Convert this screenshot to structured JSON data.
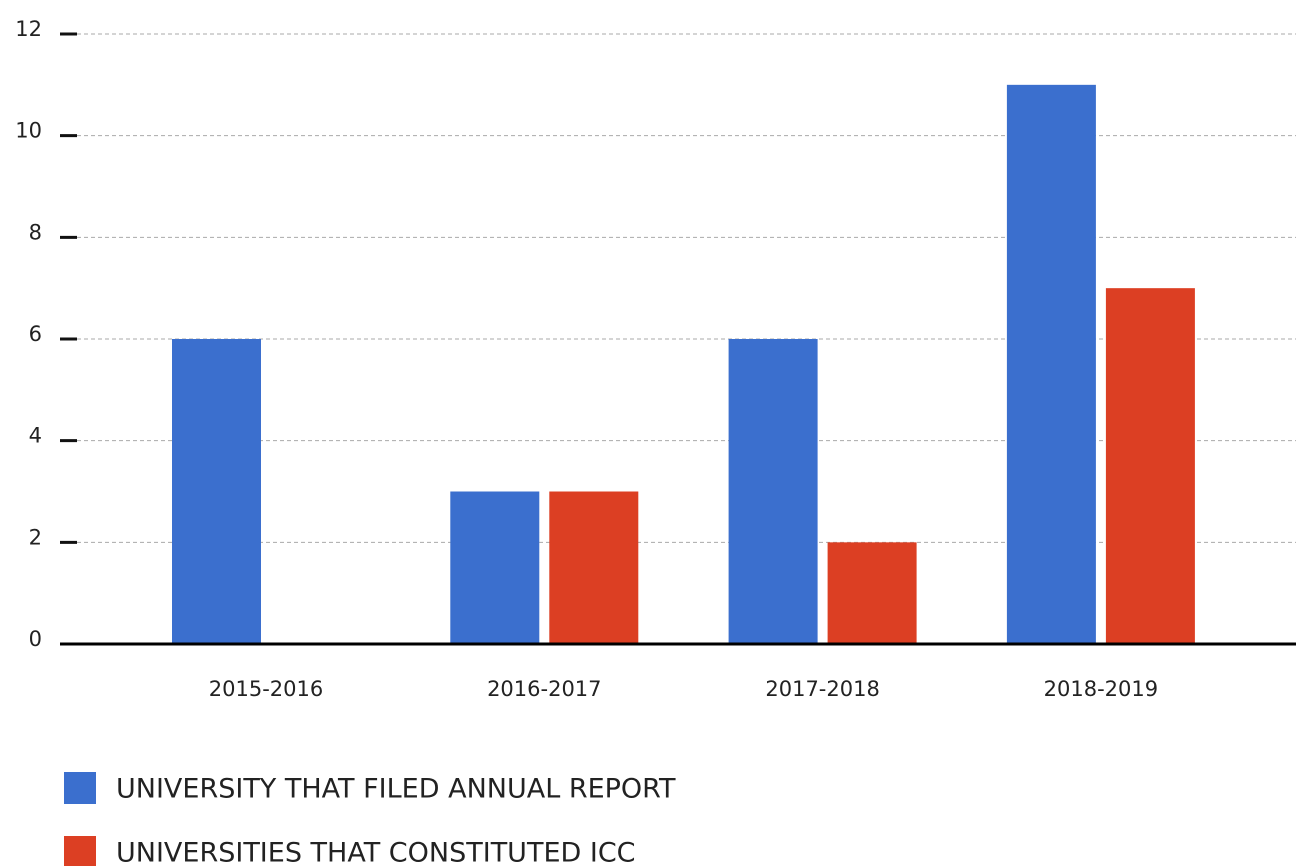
{
  "chart_data": {
    "type": "bar",
    "categories": [
      "2015-2016",
      "2016-2017",
      "2017-2018",
      "2018-2019"
    ],
    "series": [
      {
        "name": "UNIVERSITY THAT FILED ANNUAL REPORT",
        "color": "#3b6fce",
        "values": [
          6,
          3,
          6,
          11
        ]
      },
      {
        "name": "UNIVERSITIES THAT CONSTITUTED ICC",
        "color": "#dc3f23",
        "values": [
          0,
          3,
          2,
          7
        ]
      }
    ],
    "ylim": [
      0,
      12
    ],
    "yticks": [
      0,
      2,
      4,
      6,
      8,
      10,
      12
    ],
    "grid": true
  }
}
